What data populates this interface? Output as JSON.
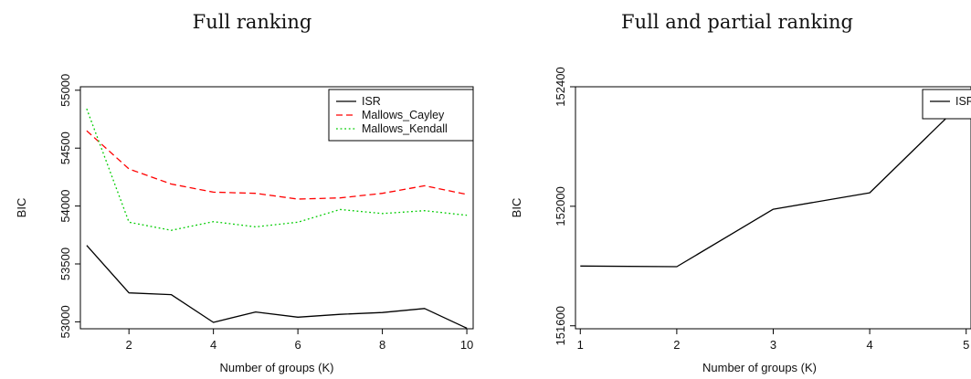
{
  "chart_data": [
    {
      "type": "line",
      "title": "Full ranking",
      "xlabel": "Number of groups (K)",
      "ylabel": "BIC",
      "xlim": [
        0.85,
        10.15
      ],
      "ylim": [
        52940,
        55030
      ],
      "xticks": [
        2,
        4,
        6,
        8,
        10
      ],
      "yticks": [
        53000,
        53500,
        54000,
        54500,
        55000
      ],
      "grid": false,
      "legend_position": "top-right",
      "x": [
        1,
        2,
        3,
        4,
        5,
        6,
        7,
        8,
        9,
        10
      ],
      "series": [
        {
          "name": "ISR",
          "color": "#000000",
          "dash": "solid",
          "values": [
            53660,
            53250,
            53235,
            52995,
            53085,
            53040,
            53065,
            53080,
            53115,
            52945
          ]
        },
        {
          "name": "Mallows_Cayley",
          "color": "#ff0000",
          "dash": "dashed",
          "values": [
            54650,
            54320,
            54190,
            54120,
            54110,
            54060,
            54070,
            54110,
            54175,
            54100
          ]
        },
        {
          "name": "Mallows_Kendall",
          "color": "#00cc00",
          "dash": "dotted",
          "values": [
            54840,
            53860,
            53790,
            53865,
            53820,
            53860,
            53970,
            53935,
            53960,
            53920
          ]
        }
      ]
    },
    {
      "type": "line",
      "title": "Full and partial ranking",
      "xlabel": "Number of groups (K)",
      "ylabel": "BIC",
      "xlim": [
        0.95,
        5.05
      ],
      "ylim": [
        151590,
        152400
      ],
      "xticks": [
        1,
        2,
        3,
        4,
        5
      ],
      "yticks": [
        151600,
        152000,
        152400
      ],
      "grid": false,
      "legend_position": "top-right",
      "x": [
        1,
        2,
        3,
        4,
        5
      ],
      "series": [
        {
          "name": "ISR",
          "color": "#000000",
          "dash": "solid",
          "values": [
            151800,
            151798,
            151990,
            152045,
            152360
          ]
        }
      ]
    }
  ]
}
